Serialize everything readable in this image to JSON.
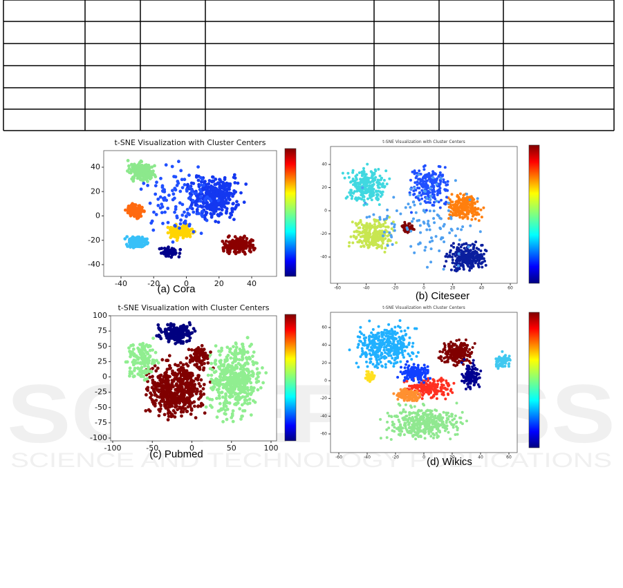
{
  "watermark": {
    "brand": "SCITEPRESS",
    "tagline": "SCIENCE AND TECHNOLOGY PUBLICATIONS"
  },
  "figure": {
    "panels": [
      {
        "title": "t-SNE Visualization with Cluster Centers",
        "caption": "(a) Cora",
        "xticks": [
          -40,
          -20,
          0,
          20,
          40
        ],
        "yticks": [
          40,
          20,
          0,
          -20,
          -40
        ]
      },
      {
        "title": "t-SNE Visualization with Cluster Centers",
        "caption": "(b) Citeseer",
        "xticks": [
          -60,
          -40,
          -20,
          0,
          20,
          40,
          60
        ],
        "yticks": [
          40,
          20,
          0,
          -20,
          -40
        ]
      },
      {
        "title": "t-SNE Visualization with Cluster Centers",
        "caption": "(c) Pubmed",
        "xticks": [
          -100,
          -50,
          0,
          50,
          100
        ],
        "yticks": [
          100,
          75,
          50,
          25,
          0,
          -25,
          -50,
          -75,
          -100
        ]
      },
      {
        "title": "t-SNE Visualization with Cluster Centers",
        "caption": "(d) Wikics",
        "xticks": [
          -60,
          -40,
          -20,
          0,
          20,
          40,
          60
        ],
        "yticks": [
          60,
          40,
          20,
          0,
          -20,
          -40,
          -60
        ]
      }
    ]
  }
}
